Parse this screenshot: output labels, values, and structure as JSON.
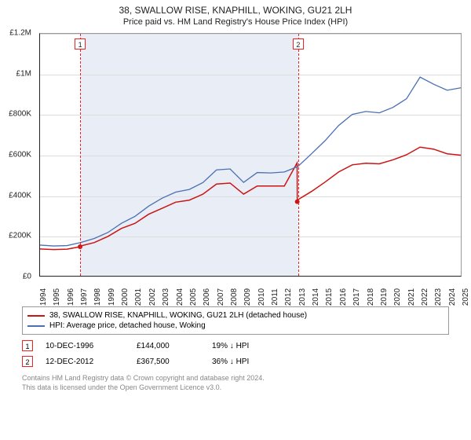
{
  "header": {
    "title": "38, SWALLOW RISE, KNAPHILL, WOKING, GU21 2LH",
    "subtitle": "Price paid vs. HM Land Registry's House Price Index (HPI)"
  },
  "chart": {
    "type": "line",
    "background_color": "#ffffff",
    "shaded_region_color": "#e9eef6",
    "grid_color": "#dddddd",
    "axis_color": "#222222",
    "label_fontsize": 10,
    "ylim": [
      0,
      1200000
    ],
    "ytick_step": 200000,
    "y_labels": [
      "£0",
      "£200K",
      "£400K",
      "£600K",
      "£800K",
      "£1M",
      "£1.2M"
    ],
    "x_years": [
      1994,
      1995,
      1996,
      1997,
      1998,
      1999,
      2000,
      2001,
      2002,
      2003,
      2004,
      2005,
      2006,
      2007,
      2008,
      2009,
      2010,
      2011,
      2012,
      2013,
      2014,
      2015,
      2016,
      2017,
      2018,
      2019,
      2020,
      2021,
      2022,
      2023,
      2024,
      2025
    ],
    "shaded_start_year": 1996.95,
    "shaded_end_year": 2012.95,
    "markers": [
      {
        "num": "1",
        "year": 1996.95,
        "y": 144000
      },
      {
        "num": "2",
        "year": 2012.95,
        "y": 367500
      }
    ],
    "series": [
      {
        "name": "property",
        "color": "#cc1414",
        "width": 1.5,
        "points": [
          [
            1994,
            133000
          ],
          [
            1995,
            130000
          ],
          [
            1996,
            132000
          ],
          [
            1996.95,
            144000
          ],
          [
            1997,
            148000
          ],
          [
            1998,
            165000
          ],
          [
            1999,
            195000
          ],
          [
            2000,
            235000
          ],
          [
            2001,
            260000
          ],
          [
            2002,
            305000
          ],
          [
            2003,
            335000
          ],
          [
            2004,
            365000
          ],
          [
            2005,
            375000
          ],
          [
            2006,
            405000
          ],
          [
            2007,
            455000
          ],
          [
            2008,
            460000
          ],
          [
            2009,
            405000
          ],
          [
            2010,
            445000
          ],
          [
            2011,
            445000
          ],
          [
            2012,
            445000
          ],
          [
            2012.94,
            560000
          ],
          [
            2012.95,
            367500
          ],
          [
            2013,
            377000
          ],
          [
            2014,
            418000
          ],
          [
            2015,
            465000
          ],
          [
            2016,
            515000
          ],
          [
            2017,
            550000
          ],
          [
            2018,
            558000
          ],
          [
            2019,
            555000
          ],
          [
            2020,
            575000
          ],
          [
            2021,
            600000
          ],
          [
            2022,
            638000
          ],
          [
            2023,
            628000
          ],
          [
            2024,
            605000
          ],
          [
            2025,
            598000
          ]
        ]
      },
      {
        "name": "hpi",
        "color": "#4a6fb3",
        "width": 1.3,
        "points": [
          [
            1994,
            152000
          ],
          [
            1995,
            148000
          ],
          [
            1996,
            150000
          ],
          [
            1997,
            165000
          ],
          [
            1998,
            185000
          ],
          [
            1999,
            215000
          ],
          [
            2000,
            260000
          ],
          [
            2001,
            295000
          ],
          [
            2002,
            345000
          ],
          [
            2003,
            385000
          ],
          [
            2004,
            415000
          ],
          [
            2005,
            428000
          ],
          [
            2006,
            462000
          ],
          [
            2007,
            525000
          ],
          [
            2008,
            530000
          ],
          [
            2009,
            463000
          ],
          [
            2010,
            512000
          ],
          [
            2011,
            510000
          ],
          [
            2012,
            515000
          ],
          [
            2013,
            542000
          ],
          [
            2014,
            605000
          ],
          [
            2015,
            670000
          ],
          [
            2016,
            745000
          ],
          [
            2017,
            800000
          ],
          [
            2018,
            815000
          ],
          [
            2019,
            808000
          ],
          [
            2020,
            835000
          ],
          [
            2021,
            878000
          ],
          [
            2022,
            985000
          ],
          [
            2023,
            950000
          ],
          [
            2024,
            920000
          ],
          [
            2025,
            932000
          ]
        ]
      }
    ]
  },
  "legend": {
    "items": [
      {
        "label": "38, SWALLOW RISE, KNAPHILL, WOKING, GU21 2LH (detached house)",
        "color": "#cc1414"
      },
      {
        "label": "HPI: Average price, detached house, Woking",
        "color": "#4a6fb3"
      }
    ]
  },
  "transactions": [
    {
      "num": "1",
      "date": "10-DEC-1996",
      "price": "£144,000",
      "delta": "19% ↓ HPI"
    },
    {
      "num": "2",
      "date": "12-DEC-2012",
      "price": "£367,500",
      "delta": "36% ↓ HPI"
    }
  ],
  "footer": {
    "line1": "Contains HM Land Registry data © Crown copyright and database right 2024.",
    "line2": "This data is licensed under the Open Government Licence v3.0."
  }
}
